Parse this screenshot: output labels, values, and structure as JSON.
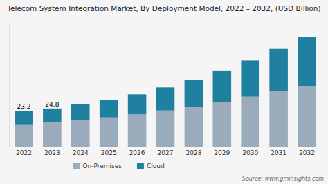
{
  "chart_data": {
    "type": "bar",
    "stacked": true,
    "title": "Telecom System Integration Market, By Deployment Model, 2022 – 2032, (USD Billion)",
    "categories": [
      "2022",
      "2023",
      "2024",
      "2025",
      "2026",
      "2027",
      "2028",
      "2029",
      "2030",
      "2031",
      "2032"
    ],
    "series": [
      {
        "name": "On-Premises",
        "color": "#9aabbc",
        "values": [
          14.5,
          15.8,
          17.5,
          19.0,
          21.0,
          23.5,
          26.0,
          29.0,
          32.5,
          36.0,
          39.5
        ]
      },
      {
        "name": "Cloud",
        "color": "#2080a0",
        "values": [
          8.7,
          9.0,
          10.0,
          11.5,
          13.0,
          15.0,
          17.5,
          20.5,
          23.5,
          27.5,
          31.5
        ]
      }
    ],
    "annotations": [
      {
        "category": "2022",
        "value": 23.2,
        "text": "23.2"
      },
      {
        "category": "2023",
        "value": 24.8,
        "text": "24.8"
      }
    ],
    "source": "Source: www.gminsights.com",
    "ylim": [
      0,
      80
    ],
    "tick_labels": "x",
    "grid": false,
    "legend": "bottom"
  }
}
